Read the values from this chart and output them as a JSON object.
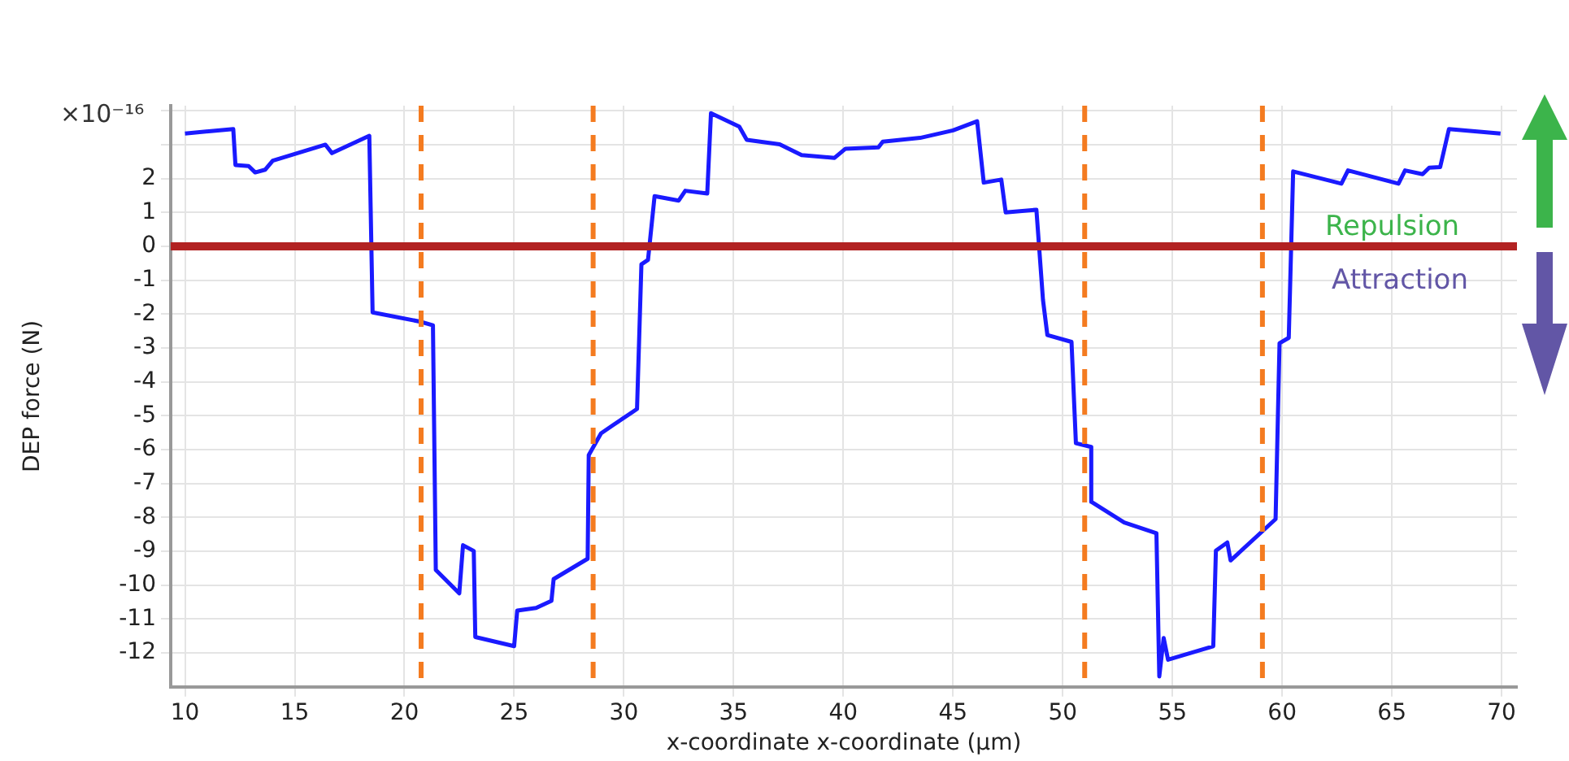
{
  "chart_data": {
    "type": "line",
    "xlabel": "x-coordinate x-coordinate (µm)",
    "ylabel": "DEP force (N)",
    "annotations": [
      "×10⁻¹⁶",
      "Repulsion",
      "Attraction"
    ],
    "x": [
      10.0,
      12.2,
      12.3,
      12.9,
      13.2,
      13.65,
      14.0,
      16.4,
      16.7,
      18.4,
      18.55,
      20.7,
      21.3,
      21.43,
      22.5,
      22.67,
      23.16,
      23.23,
      25.0,
      25.14,
      26.0,
      26.7,
      26.8,
      28.35,
      28.4,
      28.96,
      29.5,
      30.6,
      30.8,
      31.1,
      31.4,
      32.5,
      32.8,
      33.8,
      33.97,
      35.26,
      35.6,
      37.1,
      38.1,
      39.6,
      40.1,
      41.6,
      41.8,
      43.5,
      45.0,
      46.1,
      46.4,
      47.2,
      47.4,
      48.8,
      49.1,
      49.3,
      50.4,
      50.6,
      51.3,
      51.3,
      52.8,
      54.27,
      54.4,
      54.6,
      54.8,
      56.86,
      56.98,
      57.5,
      57.65,
      59.7,
      59.88,
      60.3,
      60.5,
      62.7,
      63.0,
      65.3,
      65.6,
      66.4,
      66.7,
      67.2,
      67.6,
      69.95
    ],
    "series": [
      {
        "color": "#1a1aff",
        "values": [
          3.33,
          3.46,
          2.4,
          2.37,
          2.18,
          2.26,
          2.53,
          3.0,
          2.75,
          3.26,
          -1.95,
          -2.22,
          -2.33,
          -9.55,
          -10.24,
          -8.82,
          -8.99,
          -11.53,
          -11.8,
          -10.75,
          -10.67,
          -10.46,
          -9.82,
          -9.22,
          -6.16,
          -5.52,
          -5.28,
          -4.8,
          -0.53,
          -0.4,
          1.48,
          1.35,
          1.64,
          1.56,
          3.93,
          3.53,
          3.14,
          3.01,
          2.69,
          2.61,
          2.88,
          2.92,
          3.09,
          3.2,
          3.42,
          3.69,
          1.88,
          1.97,
          1.0,
          1.08,
          -1.58,
          -2.62,
          -2.82,
          -5.81,
          -5.92,
          -7.54,
          -8.15,
          -8.47,
          -12.69,
          -11.56,
          -12.2,
          -11.8,
          -8.98,
          -8.74,
          -9.27,
          -8.05,
          -2.86,
          -2.7,
          2.21,
          1.85,
          2.24,
          1.85,
          2.24,
          2.13,
          2.32,
          2.34,
          3.46,
          3.33
        ]
      }
    ],
    "xlim": [
      9.35,
      70.7
    ],
    "xticks": [
      10,
      15,
      20,
      25,
      30,
      35,
      40,
      45,
      50,
      55,
      60,
      65,
      70
    ],
    "ylim": [
      -13,
      4.15
    ],
    "yticks": [
      -12,
      -11,
      -10,
      -9,
      -8,
      -7,
      -6,
      -5,
      -4,
      -3,
      -2,
      -1,
      0,
      1,
      2,
      {
        "value": 3,
        "label": null
      },
      {
        "value": 4,
        "label": null
      }
    ],
    "ref_lines": [
      {
        "axis": "y",
        "value": 0,
        "color": "#b22222",
        "line_style": "solid"
      },
      {
        "axis": "x",
        "value": 20.76,
        "color": "#f47b20",
        "line_style": "dashed"
      },
      {
        "axis": "x",
        "value": 28.6,
        "color": "#f47b20",
        "line_style": "dashed"
      },
      {
        "axis": "x",
        "value": 51.0,
        "color": "#f47b20",
        "line_style": "dashed"
      },
      {
        "axis": "x",
        "value": 59.1,
        "color": "#f47b20",
        "line_style": "dashed"
      }
    ],
    "grid": true,
    "legend": false,
    "marker": "none",
    "line_style": "solid"
  }
}
